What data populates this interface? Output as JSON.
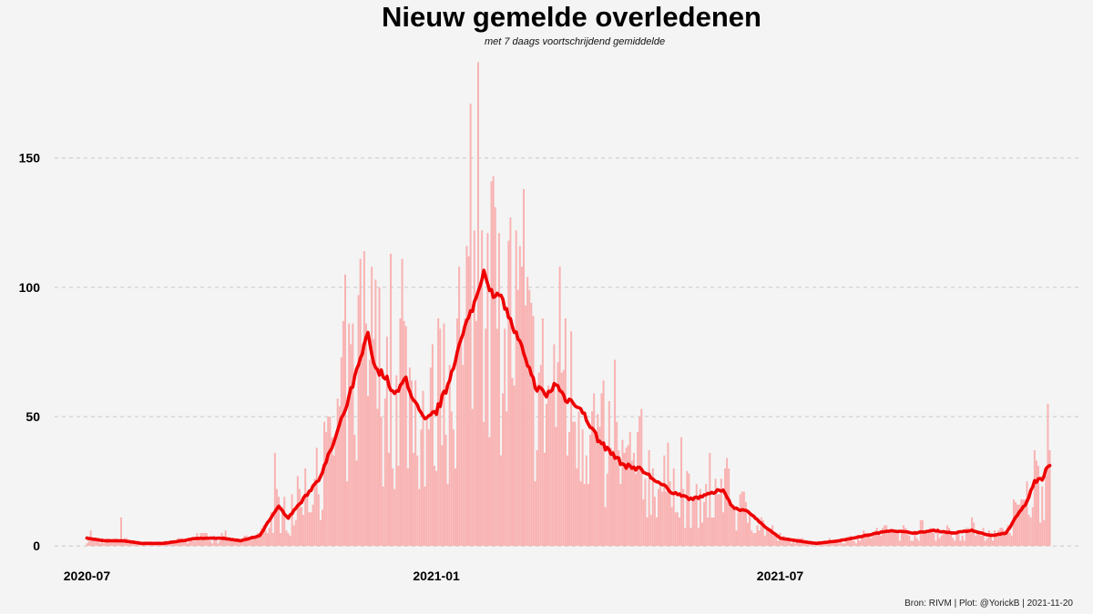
{
  "title": "Nieuw gemelde overledenen",
  "subtitle": "met 7 daags voortschrijdend gemiddelde",
  "caption": "Bron: RIVM | Plot: @YorickB |  2021-11-20",
  "colors": {
    "bars": "#f9b2b2",
    "line": "#ee0000",
    "grid": "#c8c8c8",
    "background": "#f4f4f4"
  },
  "chart_data": {
    "type": "bar",
    "title": "Nieuw gemelde overledenen",
    "subtitle": "met 7 daags voortschrijdend gemiddelde",
    "xlabel": "",
    "ylabel": "",
    "x_start": "2020-07-01",
    "x_end": "2021-11-20",
    "xlim": [
      "2020-06-14",
      "2021-12-07"
    ],
    "ylim": [
      -14,
      190
    ],
    "yticks": [
      0,
      50,
      100,
      150
    ],
    "xticks": [
      {
        "label": "2020-07",
        "date": "2020-07-01"
      },
      {
        "label": "2021-01",
        "date": "2021-01-01"
      },
      {
        "label": "2021-07",
        "date": "2021-07-01"
      }
    ],
    "grid": true,
    "series": [
      {
        "name": "",
        "kind": "bars"
      },
      {
        "name": "",
        "kind": "line"
      }
    ],
    "moving_average_anchors": [
      [
        "2020-07-01",
        3
      ],
      [
        "2020-07-10",
        2
      ],
      [
        "2020-07-20",
        2
      ],
      [
        "2020-07-30",
        1
      ],
      [
        "2020-08-10",
        1
      ],
      [
        "2020-08-20",
        2
      ],
      [
        "2020-08-28",
        3
      ],
      [
        "2020-09-10",
        3
      ],
      [
        "2020-09-20",
        2
      ],
      [
        "2020-09-30",
        4
      ],
      [
        "2020-10-05",
        10
      ],
      [
        "2020-10-10",
        15
      ],
      [
        "2020-10-15",
        11
      ],
      [
        "2020-10-25",
        20
      ],
      [
        "2020-11-01",
        27
      ],
      [
        "2020-11-08",
        40
      ],
      [
        "2020-11-15",
        55
      ],
      [
        "2020-11-22",
        72
      ],
      [
        "2020-11-26",
        82
      ],
      [
        "2020-11-30",
        68
      ],
      [
        "2020-12-05",
        66
      ],
      [
        "2020-12-10",
        58
      ],
      [
        "2020-12-16",
        65
      ],
      [
        "2020-12-20",
        56
      ],
      [
        "2020-12-26",
        48
      ],
      [
        "2021-01-01",
        52
      ],
      [
        "2021-01-06",
        60
      ],
      [
        "2021-01-12",
        75
      ],
      [
        "2021-01-18",
        88
      ],
      [
        "2021-01-22",
        96
      ],
      [
        "2021-01-26",
        107
      ],
      [
        "2021-01-30",
        98
      ],
      [
        "2021-02-05",
        95
      ],
      [
        "2021-02-10",
        85
      ],
      [
        "2021-02-16",
        75
      ],
      [
        "2021-02-22",
        62
      ],
      [
        "2021-02-28",
        58
      ],
      [
        "2021-03-05",
        63
      ],
      [
        "2021-03-10",
        57
      ],
      [
        "2021-03-16",
        55
      ],
      [
        "2021-03-22",
        48
      ],
      [
        "2021-03-28",
        40
      ],
      [
        "2021-04-03",
        36
      ],
      [
        "2021-04-10",
        31
      ],
      [
        "2021-04-18",
        30
      ],
      [
        "2021-04-25",
        26
      ],
      [
        "2021-05-05",
        21
      ],
      [
        "2021-05-15",
        18
      ],
      [
        "2021-05-25",
        20
      ],
      [
        "2021-06-01",
        22
      ],
      [
        "2021-06-06",
        15
      ],
      [
        "2021-06-15",
        13
      ],
      [
        "2021-06-22",
        8
      ],
      [
        "2021-07-01",
        3
      ],
      [
        "2021-07-10",
        2
      ],
      [
        "2021-07-20",
        1
      ],
      [
        "2021-08-01",
        2
      ],
      [
        "2021-08-15",
        4
      ],
      [
        "2021-08-28",
        6
      ],
      [
        "2021-09-10",
        5
      ],
      [
        "2021-09-20",
        6
      ],
      [
        "2021-09-30",
        5
      ],
      [
        "2021-10-10",
        6
      ],
      [
        "2021-10-20",
        4
      ],
      [
        "2021-10-28",
        5
      ],
      [
        "2021-11-03",
        12
      ],
      [
        "2021-11-08",
        17
      ],
      [
        "2021-11-12",
        25
      ],
      [
        "2021-11-16",
        26
      ],
      [
        "2021-11-20",
        32
      ]
    ],
    "daily_peaks": [
      [
        "2020-07-03",
        6
      ],
      [
        "2020-07-19",
        11
      ],
      [
        "2020-10-08",
        36
      ],
      [
        "2020-11-24",
        114
      ],
      [
        "2020-11-22",
        111
      ],
      [
        "2020-11-28",
        108
      ],
      [
        "2020-12-13",
        88
      ],
      [
        "2021-01-02",
        88
      ],
      [
        "2021-01-16",
        88
      ],
      [
        "2021-01-19",
        171
      ],
      [
        "2021-01-23",
        187
      ],
      [
        "2021-01-25",
        122
      ],
      [
        "2021-01-31",
        143
      ],
      [
        "2021-02-03",
        121
      ],
      [
        "2021-03-10",
        88
      ],
      [
        "2021-04-05",
        72
      ],
      [
        "2021-05-10",
        42
      ],
      [
        "2021-06-04",
        30
      ],
      [
        "2021-11-19",
        55
      ]
    ]
  }
}
